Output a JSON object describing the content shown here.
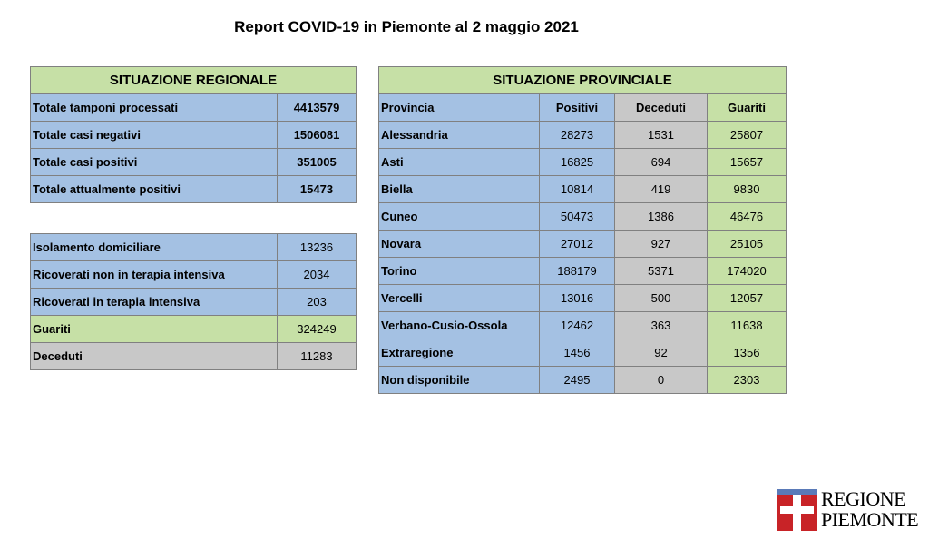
{
  "title": "Report COVID-19 in Piemonte al 2 maggio 2021",
  "regional": {
    "header": "SITUAZIONE REGIONALE",
    "main_rows": [
      {
        "label": "Totale tamponi processati",
        "value": "4413579"
      },
      {
        "label": "Totale casi negativi",
        "value": "1506081"
      },
      {
        "label": "Totale casi positivi",
        "value": "351005"
      },
      {
        "label": "Totale attualmente positivi",
        "value": "15473"
      }
    ],
    "detail_rows": [
      {
        "label": "Isolamento domiciliare",
        "value": "13236"
      },
      {
        "label": "Ricoverati non in terapia intensiva",
        "value": "2034"
      },
      {
        "label": "Ricoverati in terapia intensiva",
        "value": "203"
      },
      {
        "label": "Guariti",
        "value": "324249"
      },
      {
        "label": "Deceduti",
        "value": "11283"
      }
    ]
  },
  "provincial": {
    "header": "SITUAZIONE PROVINCIALE",
    "columns": [
      "Provincia",
      "Positivi",
      "Deceduti",
      "Guariti"
    ],
    "rows": [
      {
        "provincia": "Alessandria",
        "positivi": "28273",
        "deceduti": "1531",
        "guariti": "25807"
      },
      {
        "provincia": "Asti",
        "positivi": "16825",
        "deceduti": "694",
        "guariti": "15657"
      },
      {
        "provincia": "Biella",
        "positivi": "10814",
        "deceduti": "419",
        "guariti": "9830"
      },
      {
        "provincia": "Cuneo",
        "positivi": "50473",
        "deceduti": "1386",
        "guariti": "46476"
      },
      {
        "provincia": "Novara",
        "positivi": "27012",
        "deceduti": "927",
        "guariti": "25105"
      },
      {
        "provincia": "Torino",
        "positivi": "188179",
        "deceduti": "5371",
        "guariti": "174020"
      },
      {
        "provincia": "Vercelli",
        "positivi": "13016",
        "deceduti": "500",
        "guariti": "12057"
      },
      {
        "provincia": "Verbano-Cusio-Ossola",
        "positivi": "12462",
        "deceduti": "363",
        "guariti": "11638"
      },
      {
        "provincia": "Extraregione",
        "positivi": "1456",
        "deceduti": "92",
        "guariti": "1356"
      },
      {
        "provincia": "Non disponibile",
        "positivi": "2495",
        "deceduti": "0",
        "guariti": "2303"
      }
    ]
  },
  "logo": {
    "line1": "REGIONE",
    "line2": "PIEMONTE",
    "colors": {
      "red": "#c82327",
      "blue": "#5a7ab8"
    }
  },
  "colors": {
    "blue_cell": "#a4c1e3",
    "green_cell": "#c6e0a6",
    "gray_cell": "#c8c8c8"
  }
}
